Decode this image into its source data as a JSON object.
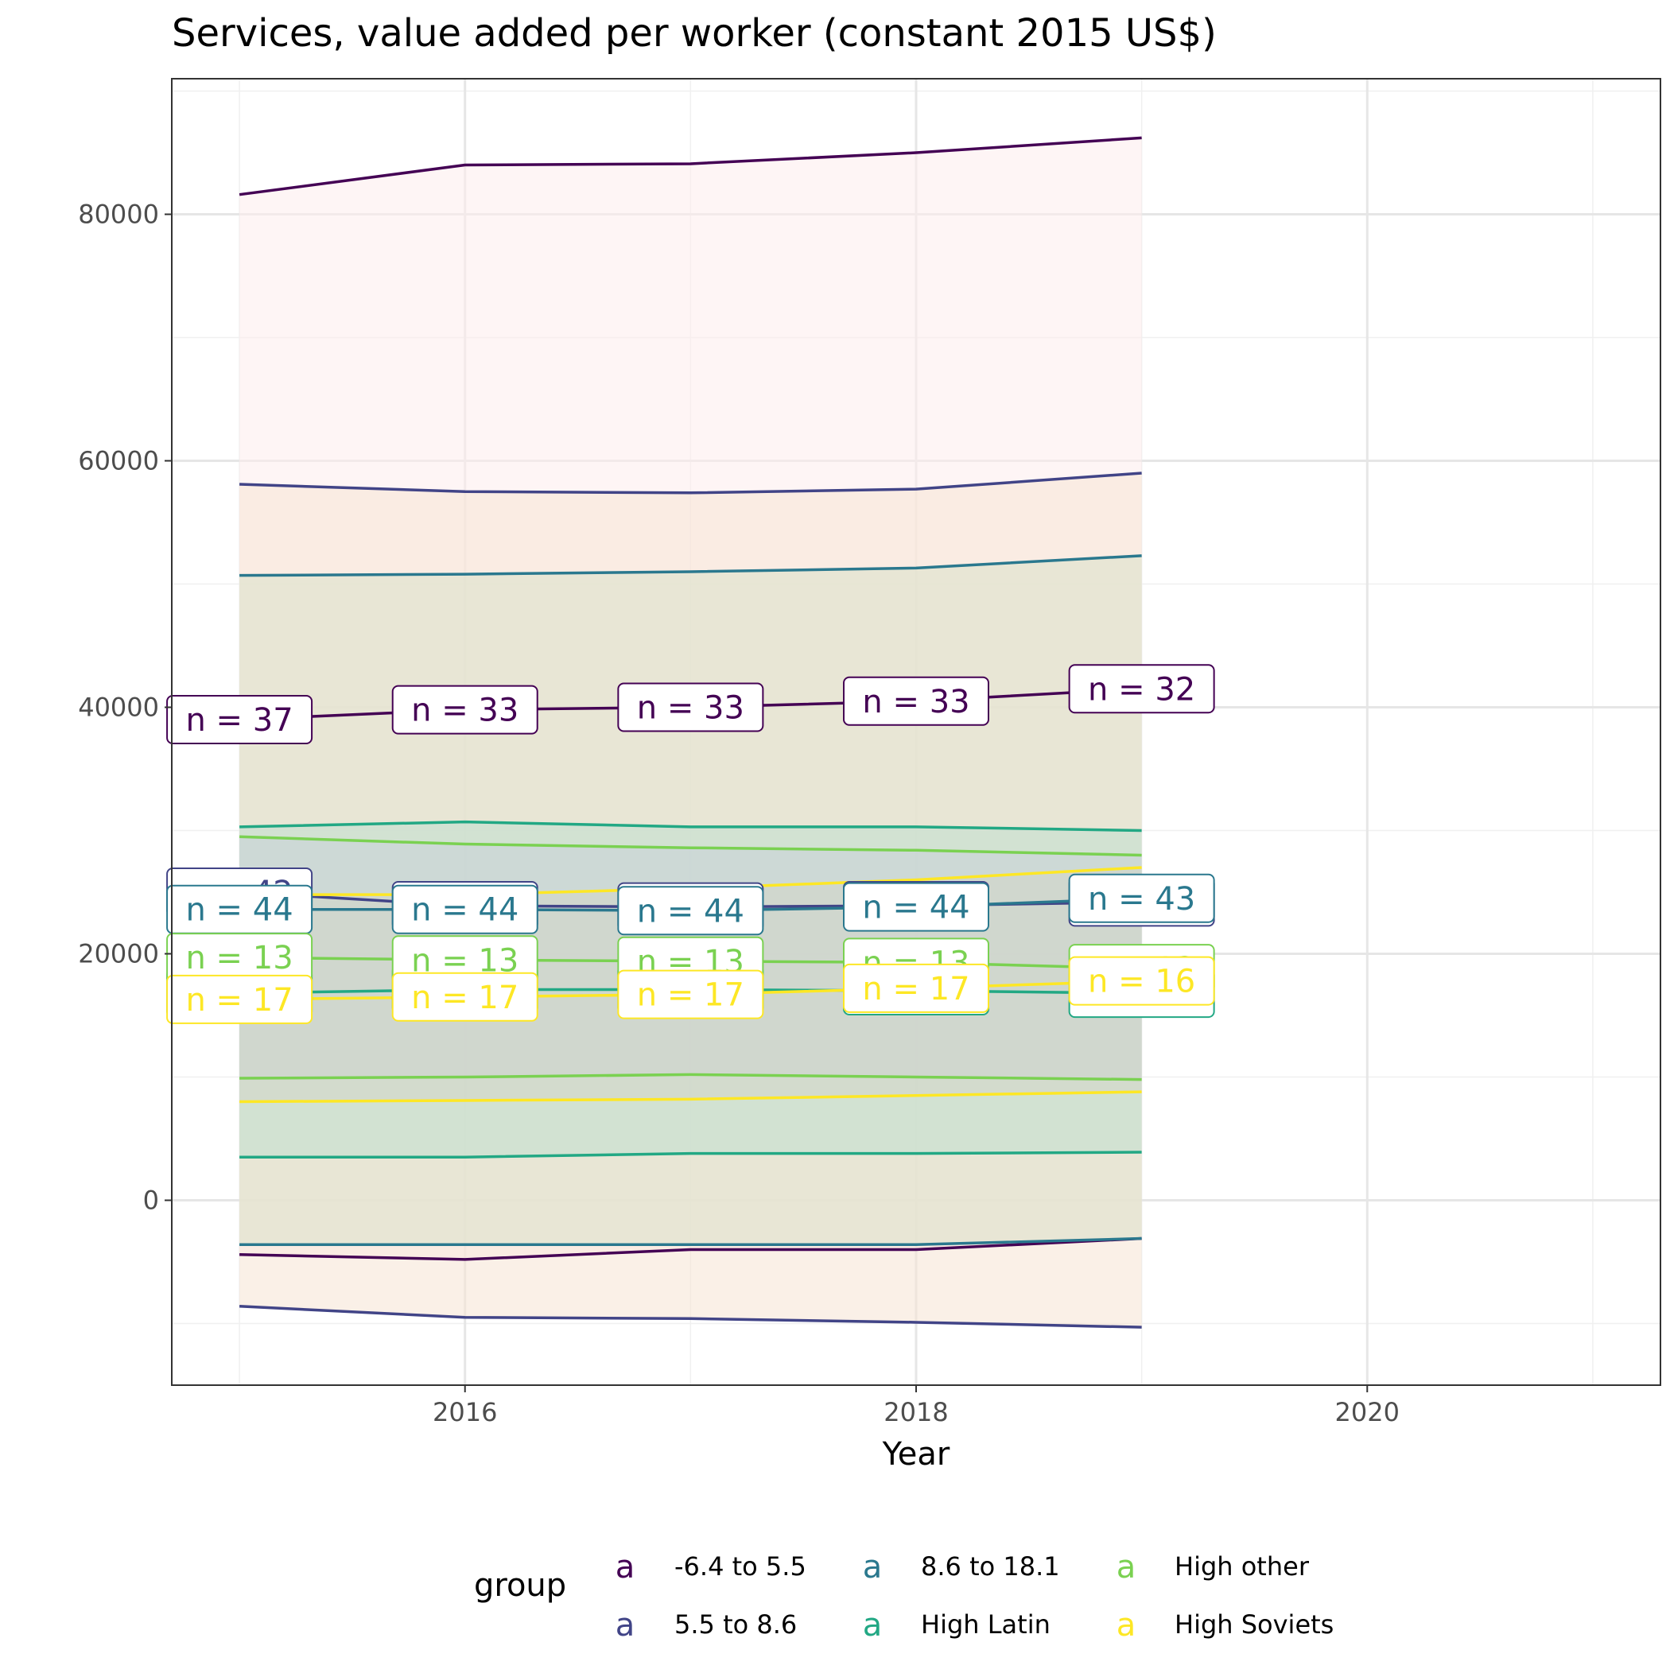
{
  "chart_data": {
    "type": "line",
    "title": "Services, value added per worker (constant 2015 US$)",
    "xlabel": "Year",
    "ylabel": "",
    "xlim": [
      2014.7,
      2021.3
    ],
    "ylim": [
      -15000,
      91000
    ],
    "x_ticks": [
      2016,
      2018,
      2020
    ],
    "y_ticks": [
      0,
      20000,
      40000,
      60000,
      80000
    ],
    "x_tick_labels": [
      "2016",
      "2018",
      "2020"
    ],
    "y_tick_labels": [
      "0",
      "20000",
      "40000",
      "60000",
      "80000"
    ],
    "grid": true,
    "legend": {
      "title": "group",
      "position": "bottom",
      "glyph": "a",
      "items": [
        {
          "label": "-6.4 to 5.5",
          "color": "#440154"
        },
        {
          "label": "5.5 to 8.6",
          "color": "#414487"
        },
        {
          "label": "8.6 to 18.1",
          "color": "#2A788E"
        },
        {
          "label": "High Latin",
          "color": "#22A884"
        },
        {
          "label": "High other",
          "color": "#7AD151"
        },
        {
          "label": "High Soviets",
          "color": "#FDE725"
        }
      ]
    },
    "x": [
      2015,
      2016,
      2017,
      2018,
      2019
    ],
    "series": [
      {
        "name": "-6.4 to 5.5",
        "color": "#440154",
        "fill": "#FDECEC",
        "mean": [
          39000,
          39800,
          40000,
          40500,
          41500
        ],
        "upper": [
          81600,
          84000,
          84100,
          85000,
          86200
        ],
        "lower": [
          -4400,
          -4800,
          -4000,
          -4000,
          -3100
        ],
        "labels": [
          "n = 37",
          "n = 33",
          "n = 33",
          "n = 33",
          "n = 32"
        ]
      },
      {
        "name": "5.5 to 8.6",
        "color": "#414487",
        "fill": "#F5E4D4",
        "mean": [
          25000,
          23900,
          23800,
          23900,
          24200
        ],
        "upper": [
          58100,
          57500,
          57400,
          57700,
          59000
        ],
        "lower": [
          -8600,
          -9500,
          -9600,
          -9900,
          -10300
        ],
        "labels": [
          "n = 42",
          "n = 42",
          "n = 42",
          "n = 41",
          "n = 39"
        ]
      },
      {
        "name": "8.6 to 18.1",
        "color": "#2A788E",
        "fill": "#D8E2CB",
        "mean": [
          23600,
          23600,
          23500,
          23800,
          24500
        ],
        "upper": [
          50700,
          50800,
          51000,
          51300,
          52300
        ],
        "lower": [
          -3600,
          -3600,
          -3600,
          -3600,
          -3100
        ],
        "labels": [
          "n = 44",
          "n = 44",
          "n = 44",
          "n = 44",
          "n = 43"
        ]
      },
      {
        "name": "High Latin",
        "color": "#22A884",
        "fill": "#BFDED0",
        "mean": [
          16800,
          17100,
          17100,
          17000,
          16800
        ],
        "upper": [
          30300,
          30700,
          30300,
          30300,
          30000
        ],
        "lower": [
          3500,
          3500,
          3800,
          3800,
          3900
        ],
        "labels": [
          "n = 12",
          "n = 12",
          "n = 12",
          "n = 12",
          "n = 12"
        ]
      },
      {
        "name": "High other",
        "color": "#7AD151",
        "fill": "#C8D2D8",
        "mean": [
          19700,
          19500,
          19400,
          19300,
          18800
        ],
        "upper": [
          29500,
          28900,
          28600,
          28400,
          28000
        ],
        "lower": [
          9900,
          10000,
          10200,
          10000,
          9800
        ],
        "labels": [
          "n = 13",
          "n = 13",
          "n = 13",
          "n = 13",
          "n = 13"
        ]
      },
      {
        "name": "High Soviets",
        "color": "#FDE725",
        "fill": "#D3D6C8",
        "mean": [
          16300,
          16500,
          16700,
          17200,
          17800
        ],
        "upper": [
          24800,
          24800,
          25300,
          26000,
          27000
        ],
        "lower": [
          8000,
          8100,
          8200,
          8500,
          8800
        ],
        "labels": [
          "n = 17",
          "n = 17",
          "n = 17",
          "n = 17",
          "n = 16"
        ]
      }
    ]
  }
}
